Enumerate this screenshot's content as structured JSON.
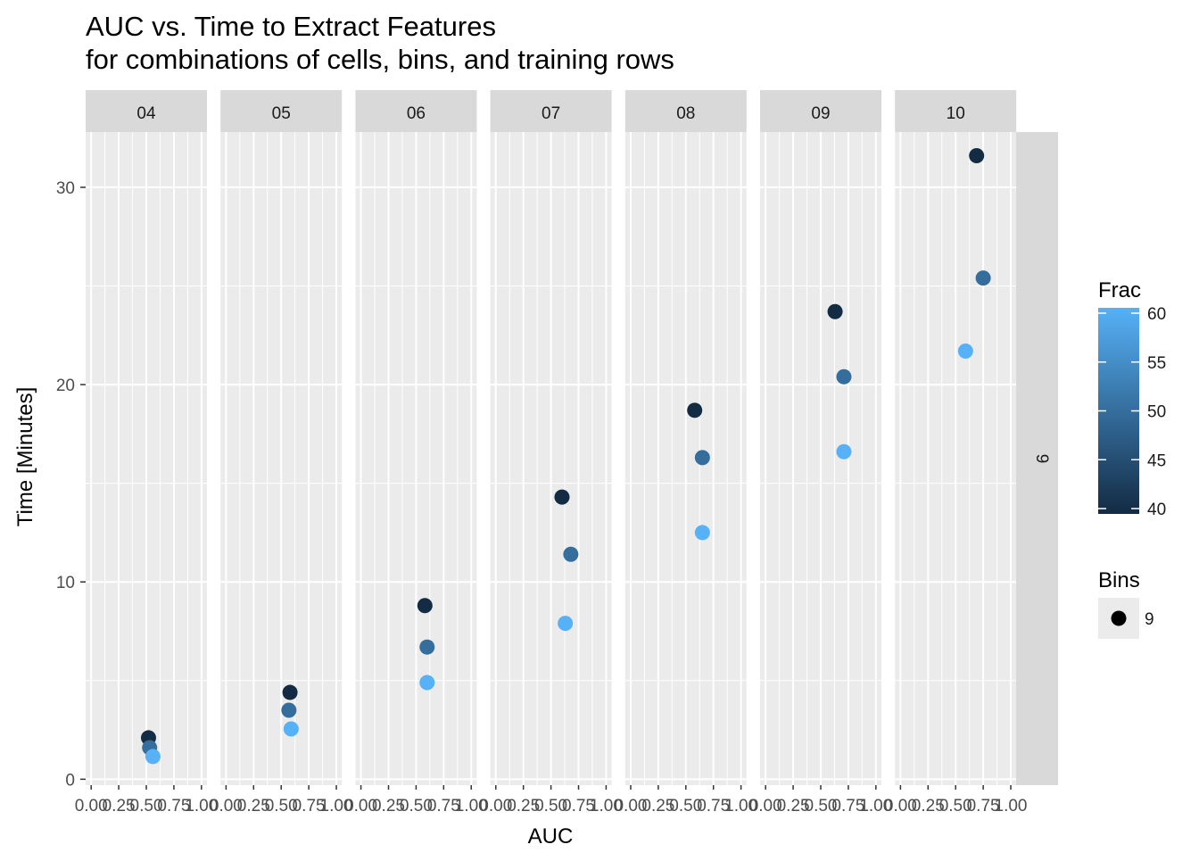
{
  "chart_data": {
    "type": "scatter",
    "title": "AUC vs. Time to Extract Features",
    "subtitle": "for combinations of cells, bins, and training rows",
    "xlabel": "AUC",
    "ylabel": "Time [Minutes]",
    "xlim": [
      0,
      1
    ],
    "ylim": [
      -0.3,
      32.8
    ],
    "x_ticks": [
      0,
      0.25,
      0.5,
      0.75,
      1
    ],
    "x_tick_labels": [
      "0.00",
      "0.25",
      "0.50",
      "0.75",
      "1.00"
    ],
    "y_ticks": [
      0,
      10,
      20,
      30
    ],
    "y_tick_labels": [
      "0",
      "10",
      "20",
      "30"
    ],
    "row_strip": "9",
    "grid": true,
    "legend": {
      "position": "right",
      "color": {
        "title": "Frac",
        "min": 40,
        "max": 60,
        "ticks": [
          "40",
          "45",
          "50",
          "55",
          "60"
        ],
        "low_color": "#132B43",
        "high_color": "#56B1F7"
      },
      "shape": {
        "title": "Bins",
        "entries": [
          "9"
        ]
      }
    },
    "panels": [
      {
        "label": "04",
        "points": [
          {
            "x": 0.52,
            "y": 2.1,
            "frac": 40
          },
          {
            "x": 0.53,
            "y": 1.6,
            "frac": 50
          },
          {
            "x": 0.56,
            "y": 1.15,
            "frac": 60
          }
        ]
      },
      {
        "label": "05",
        "points": [
          {
            "x": 0.58,
            "y": 4.4,
            "frac": 40
          },
          {
            "x": 0.57,
            "y": 3.5,
            "frac": 50
          },
          {
            "x": 0.59,
            "y": 2.55,
            "frac": 60
          }
        ]
      },
      {
        "label": "06",
        "points": [
          {
            "x": 0.58,
            "y": 8.8,
            "frac": 40
          },
          {
            "x": 0.6,
            "y": 6.7,
            "frac": 50
          },
          {
            "x": 0.6,
            "y": 4.9,
            "frac": 60
          }
        ]
      },
      {
        "label": "07",
        "points": [
          {
            "x": 0.6,
            "y": 14.3,
            "frac": 40
          },
          {
            "x": 0.68,
            "y": 11.4,
            "frac": 50
          },
          {
            "x": 0.63,
            "y": 7.9,
            "frac": 60
          }
        ]
      },
      {
        "label": "08",
        "points": [
          {
            "x": 0.58,
            "y": 18.7,
            "frac": 40
          },
          {
            "x": 0.65,
            "y": 16.3,
            "frac": 50
          },
          {
            "x": 0.65,
            "y": 12.5,
            "frac": 60
          }
        ]
      },
      {
        "label": "09",
        "points": [
          {
            "x": 0.63,
            "y": 23.7,
            "frac": 40
          },
          {
            "x": 0.71,
            "y": 20.4,
            "frac": 50
          },
          {
            "x": 0.71,
            "y": 16.6,
            "frac": 60
          }
        ]
      },
      {
        "label": "10",
        "points": [
          {
            "x": 0.69,
            "y": 31.6,
            "frac": 40
          },
          {
            "x": 0.75,
            "y": 25.4,
            "frac": 50
          },
          {
            "x": 0.59,
            "y": 21.7,
            "frac": 60
          }
        ]
      }
    ]
  }
}
